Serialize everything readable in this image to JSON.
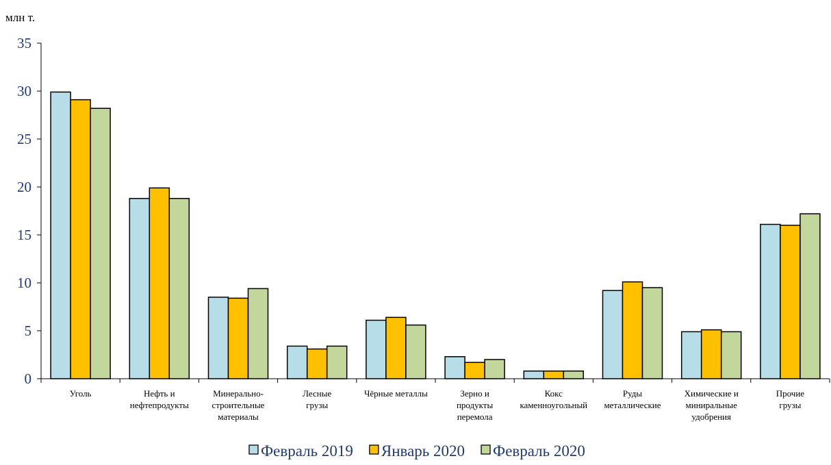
{
  "chart_data": {
    "type": "bar",
    "title": "",
    "xlabel": "",
    "ylabel": "",
    "unit_label": "млн т.",
    "ylim": [
      0,
      35
    ],
    "yticks": [
      0,
      5,
      10,
      15,
      20,
      25,
      30,
      35
    ],
    "categories": [
      [
        "Уголь"
      ],
      [
        "Нефть и",
        "нефтепродукты"
      ],
      [
        "Минерально-",
        "строительные",
        "материалы"
      ],
      [
        "Лесные",
        "грузы"
      ],
      [
        "Чёрные металлы"
      ],
      [
        "Зерно и",
        "продукты",
        "перемола"
      ],
      [
        "Кокс",
        "каменноугольный"
      ],
      [
        "Руды",
        "металлические"
      ],
      [
        "Химические и",
        "миниральные",
        "удобрения"
      ],
      [
        "Прочие",
        "грузы"
      ]
    ],
    "series": [
      {
        "name": "Февраль 2019",
        "color": "#b7dde8",
        "values": [
          29.9,
          18.8,
          8.5,
          3.4,
          6.1,
          2.3,
          0.8,
          9.2,
          4.9,
          16.1
        ]
      },
      {
        "name": "Январь 2020",
        "color": "#ffc000",
        "values": [
          29.1,
          19.9,
          8.4,
          3.1,
          6.4,
          1.7,
          0.8,
          10.1,
          5.1,
          16.0
        ]
      },
      {
        "name": "Февраль 2020",
        "color": "#c3d69b",
        "values": [
          28.2,
          18.8,
          9.4,
          3.4,
          5.6,
          2.0,
          0.8,
          9.5,
          4.9,
          17.2
        ]
      }
    ],
    "grid": false,
    "legend_position": "bottom-center"
  }
}
